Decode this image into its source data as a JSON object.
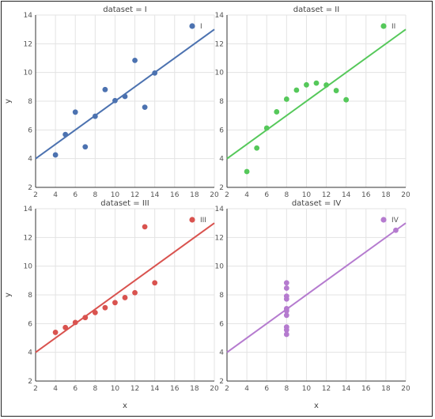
{
  "chart_data": [
    {
      "type": "scatter",
      "title": "dataset = I",
      "legend": "I",
      "color": "#4c72b0",
      "line_color": "#4c72b0",
      "xlim": [
        2,
        20
      ],
      "ylim": [
        2,
        14
      ],
      "xticks": [
        2,
        4,
        6,
        8,
        10,
        12,
        14,
        16,
        18,
        20
      ],
      "yticks": [
        2,
        4,
        6,
        8,
        10,
        12,
        14
      ],
      "xlabel": "",
      "ylabel": "y",
      "x": [
        10,
        8,
        13,
        9,
        11,
        14,
        6,
        4,
        12,
        7,
        5
      ],
      "y": [
        8.04,
        6.95,
        7.58,
        8.81,
        8.33,
        9.96,
        7.24,
        4.26,
        10.84,
        4.82,
        5.68
      ],
      "fit": {
        "intercept": 3.0,
        "slope": 0.5
      }
    },
    {
      "type": "scatter",
      "title": "dataset = II",
      "legend": "II",
      "color": "#55c85a",
      "line_color": "#55c85a",
      "xlim": [
        2,
        20
      ],
      "ylim": [
        2,
        14
      ],
      "xticks": [
        2,
        4,
        6,
        8,
        10,
        12,
        14,
        16,
        18,
        20
      ],
      "yticks": [
        2,
        4,
        6,
        8,
        10,
        12,
        14
      ],
      "xlabel": "",
      "ylabel": "",
      "x": [
        10,
        8,
        13,
        9,
        11,
        14,
        6,
        4,
        12,
        7,
        5
      ],
      "y": [
        9.14,
        8.14,
        8.74,
        8.77,
        9.26,
        8.1,
        6.13,
        3.1,
        9.13,
        7.26,
        4.74
      ],
      "fit": {
        "intercept": 3.0,
        "slope": 0.5
      }
    },
    {
      "type": "scatter",
      "title": "dataset = III",
      "legend": "III",
      "color": "#d9534f",
      "line_color": "#d9534f",
      "xlim": [
        2,
        20
      ],
      "ylim": [
        2,
        14
      ],
      "xticks": [
        2,
        4,
        6,
        8,
        10,
        12,
        14,
        16,
        18,
        20
      ],
      "yticks": [
        2,
        4,
        6,
        8,
        10,
        12,
        14
      ],
      "xlabel": "x",
      "ylabel": "y",
      "x": [
        10,
        8,
        13,
        9,
        11,
        14,
        6,
        4,
        12,
        7,
        5
      ],
      "y": [
        7.46,
        6.77,
        12.74,
        7.11,
        7.81,
        8.84,
        6.08,
        5.39,
        8.15,
        6.42,
        5.73
      ],
      "fit": {
        "intercept": 3.0,
        "slope": 0.5
      }
    },
    {
      "type": "scatter",
      "title": "dataset = IV",
      "legend": "IV",
      "color": "#b57bcf",
      "line_color": "#b57bcf",
      "xlim": [
        2,
        20
      ],
      "ylim": [
        2,
        14
      ],
      "xticks": [
        2,
        4,
        6,
        8,
        10,
        12,
        14,
        16,
        18,
        20
      ],
      "yticks": [
        2,
        4,
        6,
        8,
        10,
        12,
        14
      ],
      "xlabel": "x",
      "ylabel": "",
      "x": [
        8,
        8,
        8,
        8,
        8,
        8,
        8,
        19,
        8,
        8,
        8
      ],
      "y": [
        6.58,
        5.76,
        7.71,
        8.84,
        8.47,
        7.04,
        5.25,
        12.5,
        5.56,
        7.91,
        6.89
      ],
      "fit": {
        "intercept": 3.0,
        "slope": 0.5
      }
    }
  ]
}
